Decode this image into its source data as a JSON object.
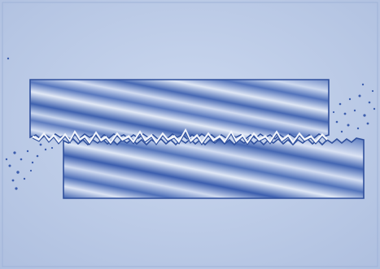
{
  "colors": {
    "paper": "#c9d6ee",
    "paper_edge": "#a8bbdd",
    "block_stroke": "#2f4f9c",
    "block_light": "#d6e0f3",
    "block_dark": "#4a6cb8",
    "debris": "#3c5dad",
    "interface_highlight": "#f2f5fb"
  },
  "diagram": {
    "blocks": [
      {
        "id": "upper-block",
        "role": "upper"
      },
      {
        "id": "lower-block",
        "role": "lower"
      }
    ],
    "interface": "rough-contact",
    "debris_sides": [
      "left-lower",
      "right-upper"
    ]
  }
}
